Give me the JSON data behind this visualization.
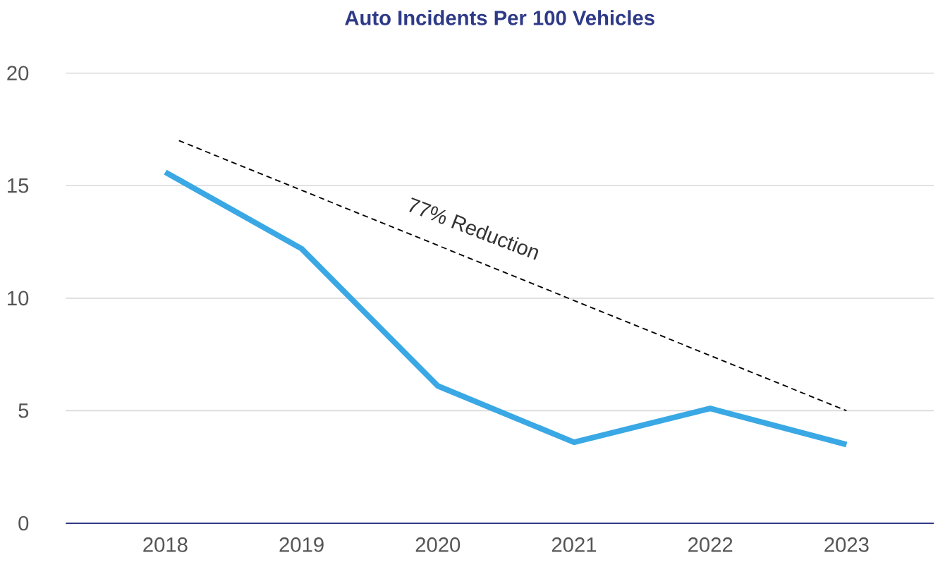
{
  "chart_data": {
    "type": "line",
    "title": "Auto Incidents Per 100 Vehicles",
    "x": [
      2018,
      2019,
      2020,
      2021,
      2022,
      2023
    ],
    "xlim": [
      2017.27,
      2023.64
    ],
    "xticks": [
      2018,
      2019,
      2020,
      2021,
      2022,
      2023
    ],
    "ylim": [
      0,
      20
    ],
    "yticks": [
      0,
      5,
      10,
      15,
      20
    ],
    "grid": "y",
    "series": [
      {
        "color": "#3aa8e4",
        "values": [
          15.6,
          12.2,
          6.1,
          3.6,
          5.1,
          3.5
        ]
      },
      {
        "type": "line",
        "color": "#000000",
        "line_style": "dashed",
        "x": [
          2018.1,
          2023
        ],
        "values": [
          17,
          5
        ]
      }
    ],
    "annotations": [
      "77% Reduction"
    ]
  }
}
